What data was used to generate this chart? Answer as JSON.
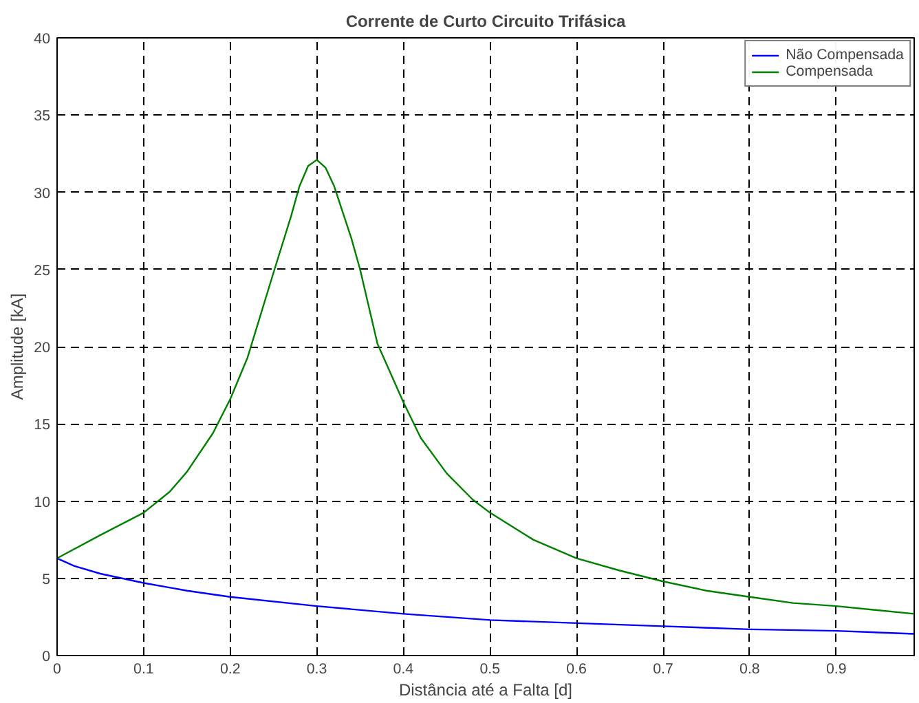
{
  "chart_data": {
    "type": "line",
    "title": "Corrente de Curto Circuito Trifásica",
    "xlabel": "Distância até a Falta [d]",
    "ylabel": "Amplitude [kA]",
    "xlim": [
      0,
      0.99
    ],
    "xticks": [
      0,
      0.1,
      0.2,
      0.3,
      0.4,
      0.5,
      0.6,
      0.7,
      0.8,
      0.9
    ],
    "ylim": [
      0,
      40
    ],
    "yticks": [
      0,
      5,
      10,
      15,
      20,
      25,
      30,
      35,
      40
    ],
    "grid": true,
    "legend": "top right",
    "line_style": "solid",
    "series": [
      {
        "name": "Não Compensada",
        "color": "#0000ff",
        "x": [
          0,
          0.02,
          0.05,
          0.1,
          0.15,
          0.2,
          0.3,
          0.4,
          0.5,
          0.6,
          0.7,
          0.8,
          0.9,
          0.99
        ],
        "values": [
          6.3,
          5.8,
          5.3,
          4.7,
          4.2,
          3.8,
          3.2,
          2.7,
          2.3,
          2.1,
          1.9,
          1.7,
          1.6,
          1.4
        ]
      },
      {
        "name": "Compensada",
        "color": "#008000",
        "x": [
          0,
          0.05,
          0.1,
          0.13,
          0.15,
          0.18,
          0.2,
          0.22,
          0.25,
          0.27,
          0.28,
          0.29,
          0.3,
          0.31,
          0.32,
          0.34,
          0.35,
          0.37,
          0.4,
          0.42,
          0.45,
          0.48,
          0.5,
          0.55,
          0.6,
          0.65,
          0.7,
          0.75,
          0.8,
          0.85,
          0.9,
          0.99
        ],
        "values": [
          6.3,
          7.8,
          9.25,
          10.6,
          11.9,
          14.4,
          16.6,
          19.3,
          24.8,
          28.4,
          30.4,
          31.7,
          32.1,
          31.6,
          30.4,
          27.0,
          25.0,
          20.2,
          16.4,
          14.1,
          11.8,
          10.1,
          9.25,
          7.5,
          6.3,
          5.5,
          4.8,
          4.2,
          3.8,
          3.4,
          3.2,
          2.7
        ]
      }
    ]
  }
}
